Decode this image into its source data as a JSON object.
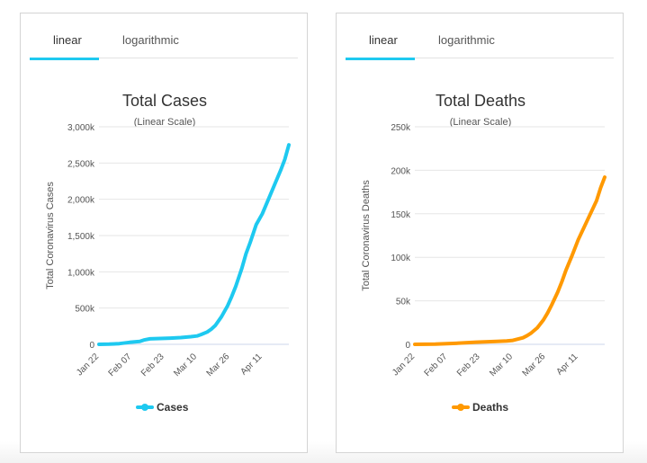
{
  "cases_card": {
    "tabs": [
      "linear",
      "logarithmic"
    ],
    "active_tab": 0
  },
  "deaths_card": {
    "tabs": [
      "linear",
      "logarithmic"
    ],
    "active_tab": 0
  },
  "colors": {
    "accent": "#1ec9f0",
    "cases": "#1ec9f0",
    "deaths": "#ff9900",
    "grid": "#e6e6e6",
    "axis": "#ccd6eb"
  },
  "chart_data": [
    {
      "type": "line",
      "title": "Total Cases",
      "subtitle": "(Linear Scale)",
      "ylabel": "Total Coronavirus Cases",
      "ylim": [
        0,
        3000000
      ],
      "yticks": [
        0,
        500000,
        1000000,
        1500000,
        2000000,
        2500000,
        3000000
      ],
      "ytick_labels": [
        "0",
        "500k",
        "1,000k",
        "1,500k",
        "2,000k",
        "2,500k",
        "3,000k"
      ],
      "xtick_labels": [
        "Jan 22",
        "Feb 07",
        "Feb 23",
        "Mar 10",
        "Mar 26",
        "Apr 11"
      ],
      "xtick_days": [
        0,
        16,
        32,
        48,
        64,
        80
      ],
      "x_days_total": 93,
      "grid": true,
      "legend": "bottom",
      "series": [
        {
          "name": "Cases",
          "points": [
            [
              0,
              550
            ],
            [
              5,
              2800
            ],
            [
              10,
              9800
            ],
            [
              15,
              27000
            ],
            [
              20,
              40000
            ],
            [
              22,
              60000
            ],
            [
              25,
              75000
            ],
            [
              30,
              80000
            ],
            [
              35,
              85000
            ],
            [
              40,
              93000
            ],
            [
              45,
              105000
            ],
            [
              48,
              115000
            ],
            [
              50,
              135000
            ],
            [
              53,
              170000
            ],
            [
              55,
              210000
            ],
            [
              57,
              260000
            ],
            [
              60,
              380000
            ],
            [
              63,
              530000
            ],
            [
              65,
              660000
            ],
            [
              67,
              800000
            ],
            [
              70,
              1050000
            ],
            [
              72,
              1250000
            ],
            [
              74,
              1400000
            ],
            [
              77,
              1650000
            ],
            [
              80,
              1800000
            ],
            [
              83,
              2000000
            ],
            [
              86,
              2200000
            ],
            [
              89,
              2400000
            ],
            [
              91,
              2550000
            ],
            [
              93,
              2750000
            ]
          ]
        }
      ]
    },
    {
      "type": "line",
      "title": "Total Deaths",
      "subtitle": "(Linear Scale)",
      "ylabel": "Total Coronavirus Deaths",
      "ylim": [
        0,
        250000
      ],
      "yticks": [
        0,
        50000,
        100000,
        150000,
        200000,
        250000
      ],
      "ytick_labels": [
        "0",
        "50k",
        "100k",
        "150k",
        "200k",
        "250k"
      ],
      "xtick_labels": [
        "Jan 22",
        "Feb 07",
        "Feb 23",
        "Mar 10",
        "Mar 26",
        "Apr 11"
      ],
      "xtick_days": [
        0,
        16,
        32,
        48,
        64,
        80
      ],
      "x_days_total": 93,
      "grid": true,
      "legend": "bottom",
      "series": [
        {
          "name": "Deaths",
          "points": [
            [
              0,
              17
            ],
            [
              10,
              250
            ],
            [
              20,
              1100
            ],
            [
              30,
              2500
            ],
            [
              40,
              3300
            ],
            [
              45,
              3800
            ],
            [
              48,
              4500
            ],
            [
              50,
              5800
            ],
            [
              53,
              7500
            ],
            [
              55,
              10000
            ],
            [
              57,
              13000
            ],
            [
              60,
              19000
            ],
            [
              63,
              28000
            ],
            [
              65,
              36000
            ],
            [
              67,
              45000
            ],
            [
              70,
              60000
            ],
            [
              72,
              72000
            ],
            [
              74,
              85000
            ],
            [
              77,
              102000
            ],
            [
              80,
              120000
            ],
            [
              83,
              135000
            ],
            [
              86,
              150000
            ],
            [
              89,
              165000
            ],
            [
              91,
              180000
            ],
            [
              93,
              192000
            ]
          ]
        }
      ]
    }
  ]
}
